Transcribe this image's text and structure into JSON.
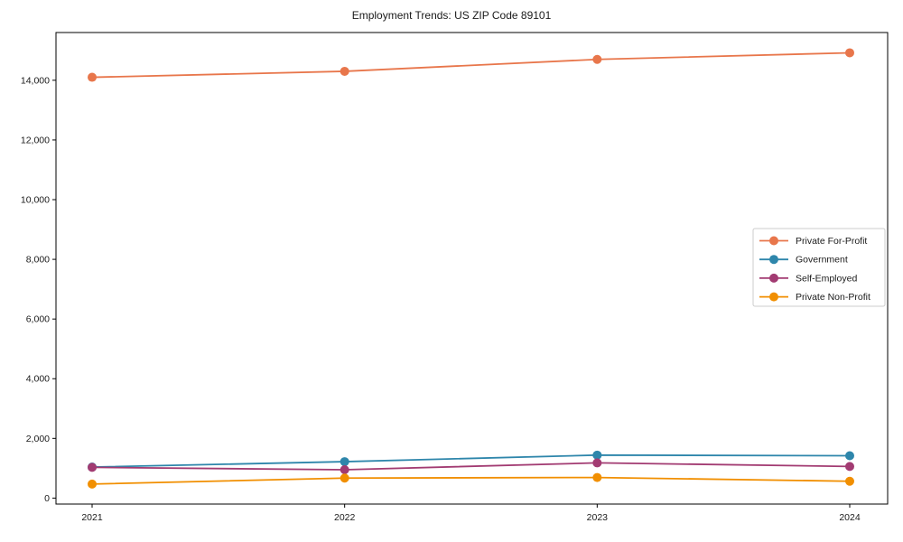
{
  "chart_data": {
    "type": "line",
    "title": "Employment Trends: US ZIP Code 89101",
    "xlabel": "",
    "ylabel": "",
    "x": [
      2021,
      2022,
      2023,
      2024
    ],
    "series": [
      {
        "name": "Private For-Profit",
        "color": "#E8764B",
        "values": [
          14100,
          14300,
          14700,
          14920
        ]
      },
      {
        "name": "Government",
        "color": "#2E86AB",
        "values": [
          1040,
          1220,
          1440,
          1420
        ]
      },
      {
        "name": "Self-Employed",
        "color": "#A23B72",
        "values": [
          1030,
          950,
          1180,
          1060
        ]
      },
      {
        "name": "Private Non-Profit",
        "color": "#F18F01",
        "values": [
          470,
          670,
          690,
          565
        ]
      }
    ],
    "ylim": [
      -200,
      15600
    ],
    "yticks": [
      0,
      2000,
      4000,
      6000,
      8000,
      10000,
      12000,
      14000
    ],
    "ytick_labels": [
      "0",
      "2,000",
      "4,000",
      "6,000",
      "8,000",
      "10,000",
      "12,000",
      "14,000"
    ],
    "xtick_labels": [
      "2021",
      "2022",
      "2023",
      "2024"
    ],
    "grid": false,
    "legend_position": "center right",
    "axis_color": "#000000",
    "background_color": "#ffffff",
    "legend_border_color": "#cccccc"
  }
}
